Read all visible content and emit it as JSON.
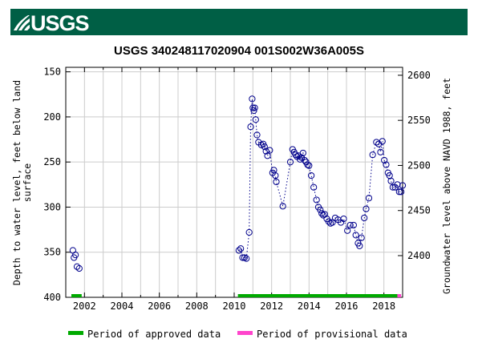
{
  "header": {
    "logo_text": "USGS",
    "bar_color": "#005f45"
  },
  "chart_data": {
    "type": "scatter",
    "title": "USGS 340248117020904 001S002W36A005S",
    "ylabel_left": [
      "Depth to water level, feet below land",
      "surface"
    ],
    "ylabel_right": "Groundwater level above NAVD 1988, feet",
    "xlim": [
      2001.0,
      2019.0
    ],
    "ylim_left": [
      400,
      145
    ],
    "ylim_right": [
      2353.8,
      2608.8
    ],
    "x_ticks": [
      2002,
      2004,
      2006,
      2008,
      2010,
      2012,
      2014,
      2016,
      2018
    ],
    "x_minor_ticks": [
      2001,
      2003,
      2005,
      2007,
      2009,
      2011,
      2013,
      2015,
      2017,
      2019
    ],
    "y_ticks_left": [
      150,
      200,
      250,
      300,
      350,
      400
    ],
    "y_ticks_right": [
      2400,
      2450,
      2500,
      2550,
      2600
    ],
    "grid": true,
    "marker_color": "#00008b",
    "series": [
      {
        "name": "",
        "connected": false,
        "points": [
          [
            2001.38,
            348
          ],
          [
            2001.44,
            356
          ],
          [
            2001.52,
            353
          ],
          [
            2001.6,
            366
          ],
          [
            2001.72,
            368
          ]
        ]
      },
      {
        "name": "",
        "connected": true,
        "points": [
          [
            2010.25,
            348
          ],
          [
            2010.35,
            346
          ],
          [
            2010.45,
            356
          ],
          [
            2010.55,
            356
          ],
          [
            2010.65,
            357
          ],
          [
            2010.8,
            328
          ],
          [
            2010.88,
            211
          ],
          [
            2010.96,
            180
          ],
          [
            2011.0,
            190
          ],
          [
            2011.05,
            193
          ],
          [
            2011.1,
            190
          ],
          [
            2011.15,
            203
          ],
          [
            2011.22,
            220
          ],
          [
            2011.3,
            228
          ],
          [
            2011.45,
            231
          ],
          [
            2011.55,
            230
          ],
          [
            2011.62,
            233
          ],
          [
            2011.7,
            238
          ],
          [
            2011.78,
            243
          ],
          [
            2011.9,
            237
          ],
          [
            2012.05,
            262
          ],
          [
            2012.12,
            259
          ],
          [
            2012.2,
            265
          ],
          [
            2012.25,
            272
          ],
          [
            2012.6,
            299
          ],
          [
            2013.0,
            250
          ],
          [
            2013.12,
            236
          ],
          [
            2013.2,
            239
          ],
          [
            2013.28,
            242
          ],
          [
            2013.36,
            244
          ],
          [
            2013.44,
            243
          ],
          [
            2013.52,
            247
          ],
          [
            2013.6,
            245
          ],
          [
            2013.68,
            240
          ],
          [
            2013.76,
            248
          ],
          [
            2013.84,
            250
          ],
          [
            2013.92,
            253
          ],
          [
            2014.0,
            254
          ],
          [
            2014.12,
            265
          ],
          [
            2014.25,
            278
          ],
          [
            2014.4,
            292
          ],
          [
            2014.5,
            300
          ],
          [
            2014.6,
            303
          ],
          [
            2014.68,
            307
          ],
          [
            2014.76,
            309
          ],
          [
            2014.84,
            308
          ],
          [
            2014.95,
            313
          ],
          [
            2015.05,
            316
          ],
          [
            2015.15,
            318
          ],
          [
            2015.25,
            317
          ],
          [
            2015.4,
            312
          ],
          [
            2015.55,
            314
          ],
          [
            2015.7,
            317
          ],
          [
            2015.85,
            313
          ],
          [
            2016.05,
            326
          ],
          [
            2016.2,
            320
          ],
          [
            2016.38,
            320
          ],
          [
            2016.5,
            331
          ],
          [
            2016.62,
            340
          ],
          [
            2016.7,
            343
          ],
          [
            2016.8,
            334
          ],
          [
            2016.95,
            312
          ],
          [
            2017.05,
            302
          ],
          [
            2017.2,
            290
          ],
          [
            2017.4,
            242
          ],
          [
            2017.6,
            228
          ],
          [
            2017.72,
            230
          ],
          [
            2017.82,
            239
          ],
          [
            2017.92,
            227
          ],
          [
            2018.02,
            248
          ],
          [
            2018.12,
            253
          ],
          [
            2018.22,
            262
          ],
          [
            2018.3,
            265
          ],
          [
            2018.38,
            271
          ],
          [
            2018.48,
            278
          ],
          [
            2018.6,
            278
          ],
          [
            2018.72,
            275
          ],
          [
            2018.82,
            283
          ],
          [
            2018.92,
            283
          ],
          [
            2019.0,
            276
          ]
        ]
      }
    ],
    "approved_periods": [
      [
        2001.3,
        2001.85
      ],
      [
        2010.2,
        2018.72
      ]
    ],
    "provisional_periods": [
      [
        2018.72,
        2018.92
      ]
    ],
    "legend": [
      {
        "label": "Period of approved data",
        "color": "#00aa00"
      },
      {
        "label": "Period of provisional data",
        "color": "#ff44cc"
      }
    ]
  }
}
